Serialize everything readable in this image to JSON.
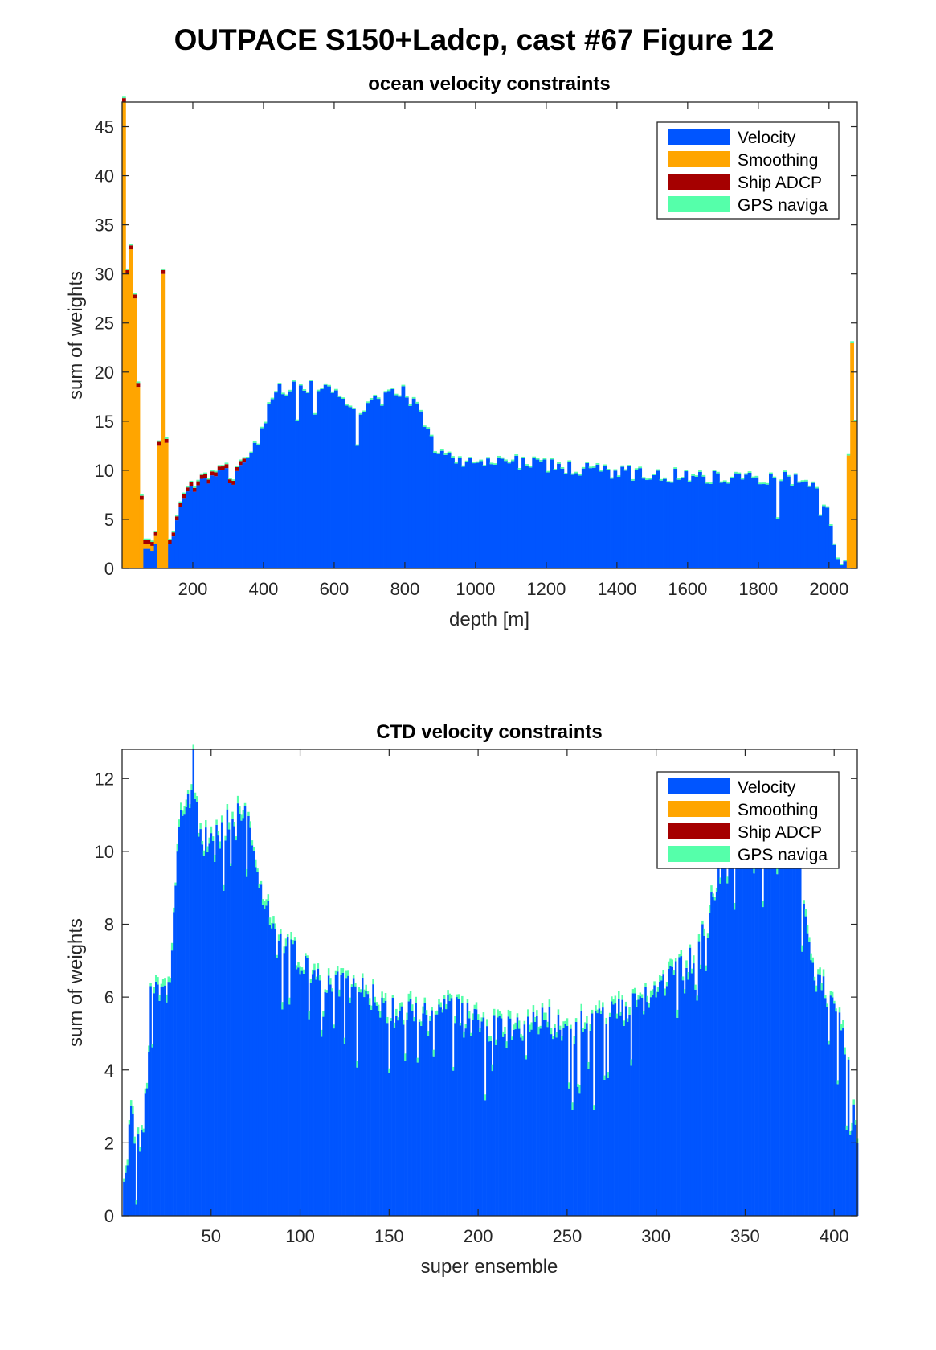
{
  "figure_title": "OUTPACE S150+Ladcp, cast #67  Figure 12",
  "colors": {
    "velocity": "#0055ff",
    "smoothing": "#ffa500",
    "ship_adcp": "#a50000",
    "gps_navigation": "#55ffaa",
    "axis": "#262626"
  },
  "chart_data": [
    {
      "type": "bar",
      "stacked": true,
      "title": "ocean velocity constraints",
      "xlabel": "depth [m]",
      "ylabel": "sum of weights",
      "xlim": [
        0,
        2080
      ],
      "ylim": [
        0,
        47.5
      ],
      "xticks": [
        200,
        400,
        600,
        800,
        1000,
        1200,
        1400,
        1600,
        1800,
        2000
      ],
      "yticks": [
        0,
        5,
        10,
        15,
        20,
        25,
        30,
        35,
        40,
        45
      ],
      "grid": false,
      "legend_position": "top-right",
      "series_names": [
        "Velocity",
        "Smoothing",
        "Ship ADCP",
        "GPS naviga"
      ],
      "bin_width_m": 10,
      "velocity_profile": [
        [
          10,
          0
        ],
        [
          40,
          0
        ],
        [
          50,
          2
        ],
        [
          80,
          2.5
        ],
        [
          95,
          0
        ],
        [
          110,
          0
        ],
        [
          120,
          2
        ],
        [
          150,
          4
        ],
        [
          170,
          6
        ],
        [
          200,
          8.5
        ],
        [
          230,
          9
        ],
        [
          260,
          9.5
        ],
        [
          300,
          9.5
        ],
        [
          320,
          9
        ],
        [
          340,
          11
        ],
        [
          360,
          12
        ],
        [
          380,
          12.5
        ],
        [
          400,
          14
        ],
        [
          420,
          17
        ],
        [
          440,
          18
        ],
        [
          480,
          18.5
        ],
        [
          540,
          18.5
        ],
        [
          600,
          18
        ],
        [
          620,
          17.5
        ],
        [
          640,
          17
        ],
        [
          660,
          16
        ],
        [
          680,
          16.5
        ],
        [
          720,
          17
        ],
        [
          760,
          17.5
        ],
        [
          800,
          18
        ],
        [
          820,
          17
        ],
        [
          840,
          16
        ],
        [
          860,
          14
        ],
        [
          880,
          12.5
        ],
        [
          920,
          11.5
        ],
        [
          960,
          11
        ],
        [
          1000,
          10.5
        ],
        [
          1060,
          10.8
        ],
        [
          1100,
          11
        ],
        [
          1200,
          10.5
        ],
        [
          1300,
          10
        ],
        [
          1400,
          9.8
        ],
        [
          1500,
          9.5
        ],
        [
          1600,
          9.5
        ],
        [
          1700,
          9.3
        ],
        [
          1800,
          9.3
        ],
        [
          1900,
          9.2
        ],
        [
          1950,
          8.8
        ],
        [
          1980,
          7
        ],
        [
          2000,
          5
        ],
        [
          2020,
          2
        ],
        [
          2040,
          0.8
        ],
        [
          2060,
          0.5
        ],
        [
          2080,
          0.5
        ]
      ],
      "smoothing_spikes": [
        {
          "depth": 5,
          "velocity": 0,
          "smoothing": 47.5
        },
        {
          "depth": 15,
          "velocity": 0,
          "smoothing": 30
        },
        {
          "depth": 25,
          "velocity": 0,
          "smoothing": 32.5
        },
        {
          "depth": 35,
          "velocity": 0,
          "smoothing": 27.5
        },
        {
          "depth": 45,
          "velocity": 0,
          "smoothing": 18.5
        },
        {
          "depth": 55,
          "velocity": 0,
          "smoothing": 7
        },
        {
          "depth": 65,
          "velocity": 2,
          "smoothing": 0.5
        },
        {
          "depth": 75,
          "velocity": 2,
          "smoothing": 0.5
        },
        {
          "depth": 85,
          "velocity": 1.8,
          "smoothing": 0.5
        },
        {
          "depth": 95,
          "velocity": 2.5,
          "smoothing": 0.8
        },
        {
          "depth": 105,
          "velocity": 0,
          "smoothing": 12.5
        },
        {
          "depth": 115,
          "velocity": 0,
          "smoothing": 30
        },
        {
          "depth": 125,
          "velocity": 0,
          "smoothing": 12.8
        },
        {
          "depth": 2055,
          "velocity": 0,
          "smoothing": 11.5
        },
        {
          "depth": 2065,
          "velocity": 0,
          "smoothing": 23
        },
        {
          "depth": 2075,
          "velocity": 0,
          "smoothing": 15
        }
      ],
      "ship_adcp_caps": 0.4
    },
    {
      "type": "bar",
      "stacked": true,
      "title": "CTD velocity constraints",
      "xlabel": "super ensemble",
      "ylabel": "sum of weights",
      "xlim": [
        0,
        413
      ],
      "ylim": [
        0,
        12.8
      ],
      "xticks": [
        50,
        100,
        150,
        200,
        250,
        300,
        350,
        400
      ],
      "yticks": [
        0,
        2,
        4,
        6,
        8,
        10,
        12
      ],
      "grid": false,
      "legend_position": "top-right",
      "series_names": [
        "Velocity",
        "Smoothing",
        "Ship ADCP",
        "GPS naviga"
      ],
      "velocity_profile": [
        [
          1,
          0.6
        ],
        [
          3,
          1.5
        ],
        [
          5,
          2.8
        ],
        [
          8,
          1.8
        ],
        [
          12,
          2.5
        ],
        [
          14,
          3.5
        ],
        [
          16,
          6
        ],
        [
          20,
          6.2
        ],
        [
          24,
          6.2
        ],
        [
          28,
          7
        ],
        [
          32,
          11
        ],
        [
          36,
          11.2
        ],
        [
          40,
          11.5
        ],
        [
          45,
          10.2
        ],
        [
          50,
          10.5
        ],
        [
          55,
          10.5
        ],
        [
          60,
          11
        ],
        [
          65,
          11.2
        ],
        [
          70,
          10.8
        ],
        [
          75,
          10
        ],
        [
          80,
          8.5
        ],
        [
          90,
          7.5
        ],
        [
          100,
          7
        ],
        [
          110,
          6.5
        ],
        [
          120,
          6.3
        ],
        [
          130,
          6.2
        ],
        [
          140,
          6
        ],
        [
          150,
          5.6
        ],
        [
          160,
          5.5
        ],
        [
          170,
          5.6
        ],
        [
          180,
          5.8
        ],
        [
          190,
          5.5
        ],
        [
          200,
          5.3
        ],
        [
          210,
          5.1
        ],
        [
          220,
          5
        ],
        [
          230,
          5.2
        ],
        [
          240,
          5.3
        ],
        [
          250,
          5.1
        ],
        [
          260,
          5.2
        ],
        [
          270,
          5.4
        ],
        [
          280,
          5.6
        ],
        [
          290,
          5.8
        ],
        [
          300,
          6.2
        ],
        [
          310,
          6.5
        ],
        [
          320,
          7
        ],
        [
          330,
          8.5
        ],
        [
          340,
          10.2
        ],
        [
          350,
          10.5
        ],
        [
          360,
          10.5
        ],
        [
          370,
          10.3
        ],
        [
          380,
          9.8
        ],
        [
          385,
          8
        ],
        [
          390,
          6.5
        ],
        [
          395,
          6.2
        ],
        [
          400,
          5.8
        ],
        [
          405,
          5
        ],
        [
          410,
          4
        ],
        [
          413,
          2
        ]
      ],
      "gps_navigation_caps": 0.15
    }
  ],
  "axes_text": [
    {
      "title": "ocean velocity constraints",
      "xlabel": "depth [m]",
      "ylabel": "sum of weights",
      "xtick_labels": [
        "200",
        "400",
        "600",
        "800",
        "1000",
        "1200",
        "1400",
        "1600",
        "1800",
        "2000"
      ],
      "ytick_labels": [
        "0",
        "5",
        "10",
        "15",
        "20",
        "25",
        "30",
        "35",
        "40",
        "45"
      ],
      "legend": [
        "Velocity",
        "Smoothing",
        "Ship ADCP",
        "GPS naviga"
      ]
    },
    {
      "title": "CTD velocity constraints",
      "xlabel": "super ensemble",
      "ylabel": "sum of weights",
      "xtick_labels": [
        "50",
        "100",
        "150",
        "200",
        "250",
        "300",
        "350",
        "400"
      ],
      "ytick_labels": [
        "0",
        "2",
        "4",
        "6",
        "8",
        "10",
        "12"
      ],
      "legend": [
        "Velocity",
        "Smoothing",
        "Ship ADCP",
        "GPS naviga"
      ]
    }
  ]
}
